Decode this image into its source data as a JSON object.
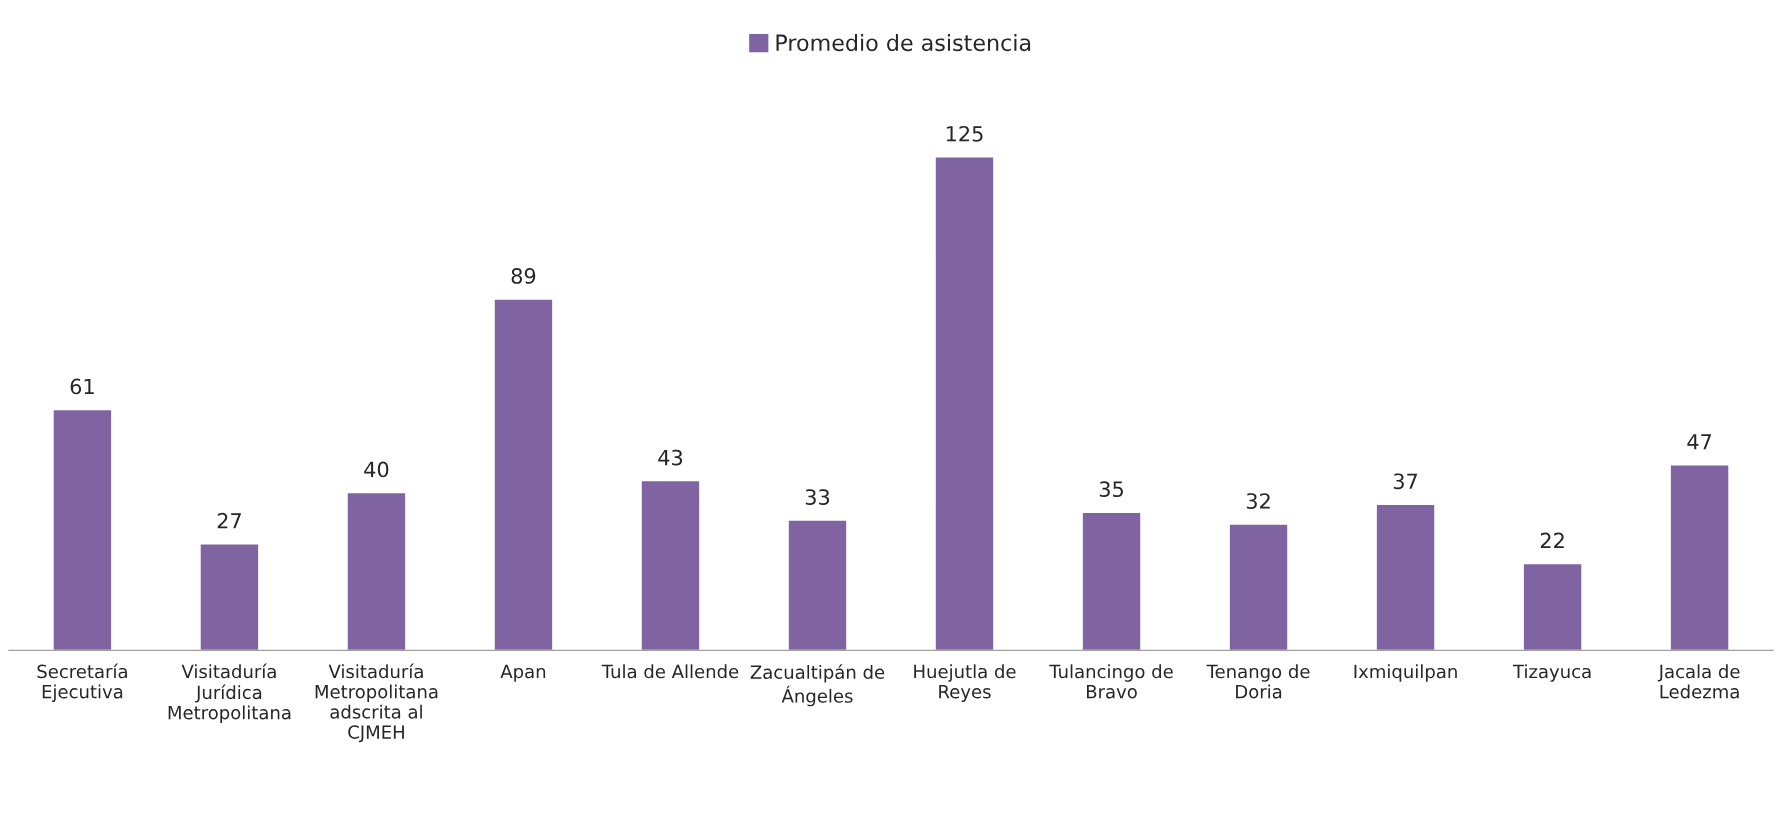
{
  "chart_data": {
    "type": "bar",
    "categories": [
      "Secretaría Ejecutiva",
      "Visitaduría Jurídica Metropolitana",
      "Visitaduría Metropolitana adscrita al CJMEH",
      "Apan",
      "Tula de Allende",
      "Zacualtipán de Ángeles",
      "Huejutla de Reyes",
      "Tulancingo de Bravo",
      "Tenango de Doria",
      "Ixmiquilpan",
      "Tizayuca",
      "Jacala de Ledezma"
    ],
    "series": [
      {
        "name": "Promedio de asistencia",
        "color": "#8064a2",
        "values": [
          61,
          27,
          40,
          89,
          43,
          33,
          125,
          35,
          32,
          37,
          22,
          47
        ]
      }
    ],
    "data_labels": true,
    "legend": "top",
    "grid": false
  }
}
